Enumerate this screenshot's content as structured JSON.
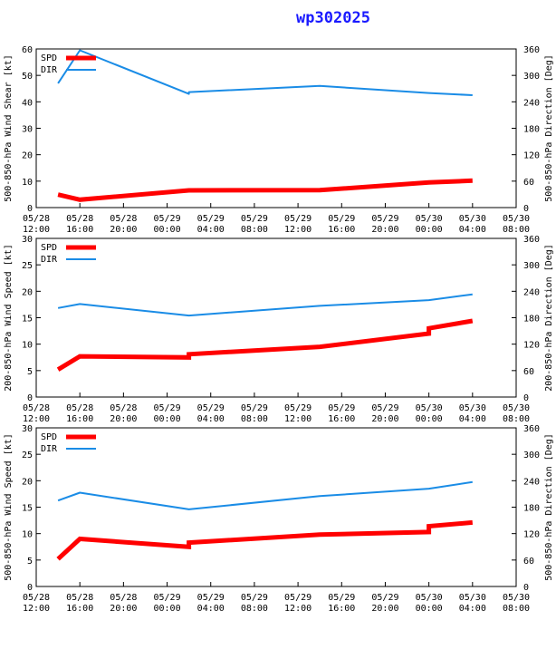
{
  "title": "wp302025",
  "colors": {
    "title": "#1a1aff",
    "spd": "#ff0000",
    "dir": "#1a8ce6",
    "axis": "#000000"
  },
  "legend": {
    "spd": "SPD",
    "dir": "DIR"
  },
  "x_ticks": [
    {
      "top": "05/28",
      "bottom": "12:00"
    },
    {
      "top": "05/28",
      "bottom": "16:00"
    },
    {
      "top": "05/28",
      "bottom": "20:00"
    },
    {
      "top": "05/29",
      "bottom": "00:00"
    },
    {
      "top": "05/29",
      "bottom": "04:00"
    },
    {
      "top": "05/29",
      "bottom": "08:00"
    },
    {
      "top": "05/29",
      "bottom": "12:00"
    },
    {
      "top": "05/29",
      "bottom": "16:00"
    },
    {
      "top": "05/29",
      "bottom": "20:00"
    },
    {
      "top": "05/30",
      "bottom": "00:00"
    },
    {
      "top": "05/30",
      "bottom": "04:00"
    },
    {
      "top": "05/30",
      "bottom": "08:00"
    }
  ],
  "chart_data": [
    {
      "type": "line",
      "ylabel_left": "500-850-hPa Wind Shear [kt]",
      "ylabel_right": "500-850-hPa Direction [Deg]",
      "x_range": [
        "05/28 12:00",
        "05/30 08:00"
      ],
      "ylim_left": [
        0,
        60
      ],
      "yticks_left": [
        0,
        10,
        20,
        30,
        40,
        50,
        60
      ],
      "ylim_right": [
        0,
        360
      ],
      "yticks_right": [
        0,
        60,
        120,
        180,
        240,
        300,
        360
      ],
      "grid": false,
      "legend_position": "top-left",
      "spd": [
        {
          "t": "05/28 14:00",
          "v": 4.9
        },
        {
          "t": "05/28 16:00",
          "v": 3.0
        },
        {
          "t": "05/29 02:00",
          "v": 6.5
        },
        {
          "t": "05/29 14:00",
          "v": 6.6
        },
        {
          "t": "05/30 00:00",
          "v": 9.5
        },
        {
          "t": "05/30 04:00",
          "v": 10.2
        }
      ],
      "dir": [
        {
          "t": "05/28 14:00",
          "v": 282
        },
        {
          "t": "05/28 16:00",
          "v": 357
        },
        {
          "t": "05/29 02:00",
          "v": 258
        },
        {
          "t": "05/29 02:00",
          "v": 262
        },
        {
          "t": "05/29 14:00",
          "v": 276
        },
        {
          "t": "05/30 00:00",
          "v": 260
        },
        {
          "t": "05/30 04:00",
          "v": 255
        }
      ]
    },
    {
      "type": "line",
      "ylabel_left": "200-850-hPa Wind Speed [kt]",
      "ylabel_right": "200-850-hPa Direction [Deg]",
      "x_range": [
        "05/28 12:00",
        "05/30 08:00"
      ],
      "ylim_left": [
        0,
        30
      ],
      "yticks_left": [
        0,
        5,
        10,
        15,
        20,
        25,
        30
      ],
      "ylim_right": [
        0,
        360
      ],
      "yticks_right": [
        0,
        60,
        120,
        180,
        240,
        300,
        360
      ],
      "grid": false,
      "legend_position": "top-left",
      "spd": [
        {
          "t": "05/28 14:00",
          "v": 5.2
        },
        {
          "t": "05/28 16:00",
          "v": 7.7
        },
        {
          "t": "05/29 02:00",
          "v": 7.5
        },
        {
          "t": "05/29 02:00",
          "v": 8.1
        },
        {
          "t": "05/29 14:00",
          "v": 9.5
        },
        {
          "t": "05/30 00:00",
          "v": 12.0
        },
        {
          "t": "05/30 00:00",
          "v": 13.0
        },
        {
          "t": "05/30 04:00",
          "v": 14.4
        }
      ],
      "dir": [
        {
          "t": "05/28 14:00",
          "v": 202
        },
        {
          "t": "05/28 16:00",
          "v": 211
        },
        {
          "t": "05/29 02:00",
          "v": 185
        },
        {
          "t": "05/29 14:00",
          "v": 207
        },
        {
          "t": "05/30 00:00",
          "v": 220
        },
        {
          "t": "05/30 04:00",
          "v": 233
        }
      ]
    },
    {
      "type": "line",
      "ylabel_left": "500-850-hPa Wind Speed [kt]",
      "ylabel_right": "500-850-hPa Direction [Deg]",
      "x_range": [
        "05/28 12:00",
        "05/30 08:00"
      ],
      "ylim_left": [
        0,
        30
      ],
      "yticks_left": [
        0,
        5,
        10,
        15,
        20,
        25,
        30
      ],
      "ylim_right": [
        0,
        360
      ],
      "yticks_right": [
        0,
        60,
        120,
        180,
        240,
        300,
        360
      ],
      "grid": false,
      "legend_position": "top-left",
      "spd": [
        {
          "t": "05/28 14:00",
          "v": 5.2
        },
        {
          "t": "05/28 16:00",
          "v": 9.0
        },
        {
          "t": "05/29 02:00",
          "v": 7.5
        },
        {
          "t": "05/29 02:00",
          "v": 8.3
        },
        {
          "t": "05/29 14:00",
          "v": 9.8
        },
        {
          "t": "05/30 00:00",
          "v": 10.3
        },
        {
          "t": "05/30 00:00",
          "v": 11.4
        },
        {
          "t": "05/30 04:00",
          "v": 12.1
        }
      ],
      "dir": [
        {
          "t": "05/28 14:00",
          "v": 195
        },
        {
          "t": "05/28 16:00",
          "v": 213
        },
        {
          "t": "05/29 02:00",
          "v": 175
        },
        {
          "t": "05/29 14:00",
          "v": 205
        },
        {
          "t": "05/30 00:00",
          "v": 222
        },
        {
          "t": "05/30 04:00",
          "v": 237
        }
      ]
    }
  ]
}
